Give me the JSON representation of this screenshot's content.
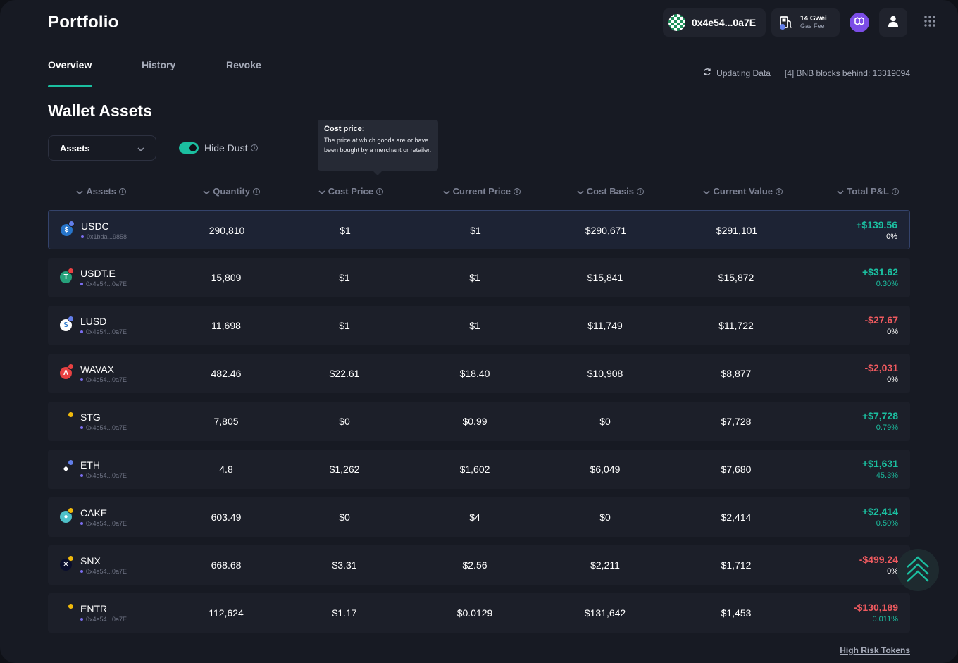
{
  "header": {
    "title": "Portfolio",
    "wallet_address": "0x4e54...0a7E",
    "gas_value": "14 Gwei",
    "gas_label": "Gas Fee"
  },
  "tabs": [
    {
      "label": "Overview",
      "active": true
    },
    {
      "label": "History",
      "active": false
    },
    {
      "label": "Revoke",
      "active": false
    }
  ],
  "status": {
    "updating": "Updating Data",
    "blocks_behind": "[4] BNB blocks behind: 13319094"
  },
  "section": {
    "title": "Wallet Assets",
    "filter_select": "Assets",
    "hide_dust_label": "Hide Dust",
    "hide_dust_on": true
  },
  "tooltip": {
    "title": "Cost price:",
    "body": "The price at which goods are or have been bought by a merchant or retailer."
  },
  "columns": [
    "Assets",
    "Quantity",
    "Cost Price",
    "Current Price",
    "Cost Basis",
    "Current Value",
    "Total P&L"
  ],
  "rows": [
    {
      "symbol": "USDC",
      "address": "0x1bda...9858",
      "quantity": "290,810",
      "cost_price": "$1",
      "current_price": "$1",
      "cost_basis": "$290,671",
      "current_value": "$291,101",
      "pnl": "+$139.56",
      "pnl_pct": "0%",
      "pnl_sign": "pos",
      "pct_sign": "zero",
      "coin_color": "#2775ca",
      "chain_color": "#627eea",
      "coin_glyph": "$"
    },
    {
      "symbol": "USDT.E",
      "address": "0x4e54...0a7E",
      "quantity": "15,809",
      "cost_price": "$1",
      "current_price": "$1",
      "cost_basis": "$15,841",
      "current_value": "$15,872",
      "pnl": "+$31.62",
      "pnl_pct": "0.30%",
      "pnl_sign": "pos",
      "pct_sign": "pos",
      "coin_color": "#26a17b",
      "chain_color": "#e84142",
      "coin_glyph": "T"
    },
    {
      "symbol": "LUSD",
      "address": "0x4e54...0a7E",
      "quantity": "11,698",
      "cost_price": "$1",
      "current_price": "$1",
      "cost_basis": "$11,749",
      "current_value": "$11,722",
      "pnl": "-$27.67",
      "pnl_pct": "0%",
      "pnl_sign": "neg",
      "pct_sign": "zero",
      "coin_color": "#ffffff",
      "chain_color": "#627eea",
      "coin_glyph": "$"
    },
    {
      "symbol": "WAVAX",
      "address": "0x4e54...0a7E",
      "quantity": "482.46",
      "cost_price": "$22.61",
      "current_price": "$18.40",
      "cost_basis": "$10,908",
      "current_value": "$8,877",
      "pnl": "-$2,031",
      "pnl_pct": "0%",
      "pnl_sign": "neg",
      "pct_sign": "zero",
      "coin_color": "#e84142",
      "chain_color": "#e84142",
      "coin_glyph": "A"
    },
    {
      "symbol": "STG",
      "address": "0x4e54...0a7E",
      "quantity": "7,805",
      "cost_price": "$0",
      "current_price": "$0.99",
      "cost_basis": "$0",
      "current_value": "$7,728",
      "pnl": "+$7,728",
      "pnl_pct": "0.79%",
      "pnl_sign": "pos",
      "pct_sign": "pos",
      "coin_color": "#1c1f29",
      "chain_color": "#f0b90b",
      "coin_glyph": ""
    },
    {
      "symbol": "ETH",
      "address": "0x4e54...0a7E",
      "quantity": "4.8",
      "cost_price": "$1,262",
      "current_price": "$1,602",
      "cost_basis": "$6,049",
      "current_value": "$7,680",
      "pnl": "+$1,631",
      "pnl_pct": "45.3%",
      "pnl_sign": "pos",
      "pct_sign": "pos",
      "coin_color": "#1c1f29",
      "chain_color": "#627eea",
      "coin_glyph": "◆"
    },
    {
      "symbol": "CAKE",
      "address": "0x4e54...0a7E",
      "quantity": "603.49",
      "cost_price": "$0",
      "current_price": "$4",
      "cost_basis": "$0",
      "current_value": "$2,414",
      "pnl": "+$2,414",
      "pnl_pct": "0.50%",
      "pnl_sign": "pos",
      "pct_sign": "pos",
      "coin_color": "#4fc1c9",
      "chain_color": "#f0b90b",
      "coin_glyph": "●"
    },
    {
      "symbol": "SNX",
      "address": "0x4e54...0a7E",
      "quantity": "668.68",
      "cost_price": "$3.31",
      "current_price": "$2.56",
      "cost_basis": "$2,211",
      "current_value": "$1,712",
      "pnl": "-$499.24",
      "pnl_pct": "0%",
      "pnl_sign": "neg",
      "pct_sign": "zero",
      "coin_color": "#0a0e2d",
      "chain_color": "#f0b90b",
      "coin_glyph": "✕"
    },
    {
      "symbol": "ENTR",
      "address": "0x4e54...0a7E",
      "quantity": "112,624",
      "cost_price": "$1.17",
      "current_price": "$0.0129",
      "cost_basis": "$131,642",
      "current_value": "$1,453",
      "pnl": "-$130,189",
      "pnl_pct": "0.011%",
      "pnl_sign": "neg",
      "pct_sign": "pos",
      "coin_color": "#1c1f29",
      "chain_color": "#f0b90b",
      "coin_glyph": ""
    }
  ],
  "footer": {
    "high_risk_link": "High Risk Tokens"
  },
  "colors": {
    "accent": "#1bbfa0",
    "negative": "#ef5a5f",
    "background": "#171a23",
    "row": "#1c1f29"
  },
  "icons": [
    "wallet-avatar-icon",
    "gas-pump-icon",
    "polygon-icon",
    "user-icon",
    "apps-grid-icon",
    "refresh-icon",
    "chevron-down-icon",
    "info-icon",
    "scroll-to-top-icon"
  ]
}
